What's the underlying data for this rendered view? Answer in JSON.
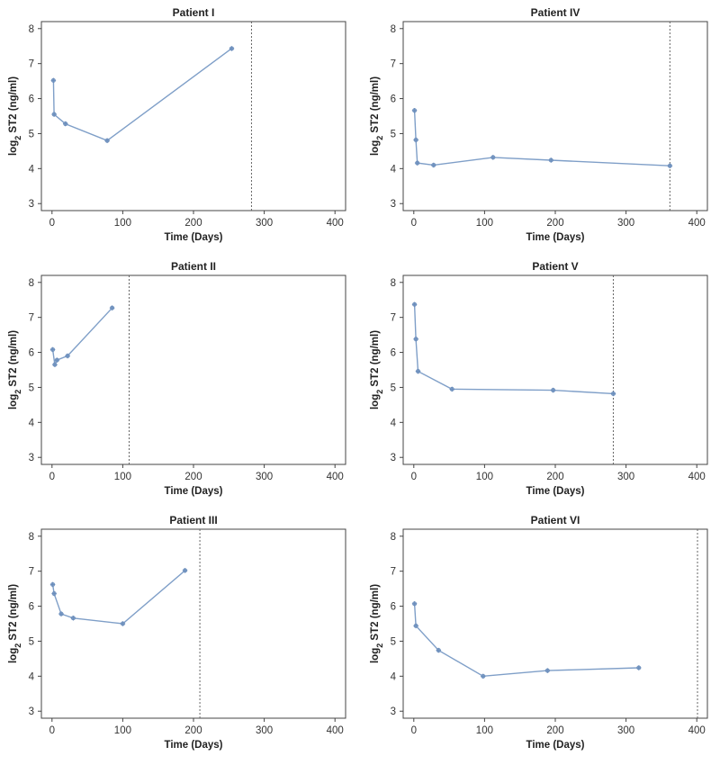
{
  "chart_data": [
    {
      "type": "line",
      "title": "Patient I",
      "xlabel": "Time (Days)",
      "ylabel": {
        "prefix": "log",
        "subscript": "2",
        "suffix": " ST2 (ng/ml)"
      },
      "xlim": [
        -15,
        415
      ],
      "ylim": [
        2.8,
        8.2
      ],
      "xticks": [
        0,
        100,
        200,
        300,
        400
      ],
      "yticks": [
        3,
        4,
        5,
        6,
        7,
        8
      ],
      "x": [
        2,
        3,
        19,
        78,
        254
      ],
      "y": [
        6.52,
        5.55,
        5.28,
        4.8,
        7.43
      ],
      "vline": 282
    },
    {
      "type": "line",
      "title": "Patient IV",
      "xlabel": "Time (Days)",
      "ylabel": {
        "prefix": "log",
        "subscript": "2",
        "suffix": " ST2 (ng/ml)"
      },
      "xlim": [
        -15,
        415
      ],
      "ylim": [
        2.8,
        8.2
      ],
      "xticks": [
        0,
        100,
        200,
        300,
        400
      ],
      "yticks": [
        3,
        4,
        5,
        6,
        7,
        8
      ],
      "x": [
        1,
        3,
        5,
        28,
        112,
        194,
        362
      ],
      "y": [
        5.66,
        4.82,
        4.16,
        4.1,
        4.32,
        4.24,
        4.08
      ],
      "vline": 362
    },
    {
      "type": "line",
      "title": "Patient II",
      "xlabel": "Time (Days)",
      "ylabel": {
        "prefix": "log",
        "subscript": "2",
        "suffix": " ST2 (ng/ml)"
      },
      "xlim": [
        -15,
        415
      ],
      "ylim": [
        2.8,
        8.2
      ],
      "xticks": [
        0,
        100,
        200,
        300,
        400
      ],
      "yticks": [
        3,
        4,
        5,
        6,
        7,
        8
      ],
      "x": [
        1,
        4,
        7,
        22,
        85
      ],
      "y": [
        6.08,
        5.65,
        5.78,
        5.9,
        7.27
      ],
      "vline": 109
    },
    {
      "type": "line",
      "title": "Patient V",
      "xlabel": "Time (Days)",
      "ylabel": {
        "prefix": "log",
        "subscript": "2",
        "suffix": " ST2 (ng/ml)"
      },
      "xlim": [
        -15,
        415
      ],
      "ylim": [
        2.8,
        8.2
      ],
      "xticks": [
        0,
        100,
        200,
        300,
        400
      ],
      "yticks": [
        3,
        4,
        5,
        6,
        7,
        8
      ],
      "x": [
        1,
        3,
        6,
        54,
        197,
        282
      ],
      "y": [
        7.37,
        6.38,
        5.46,
        4.95,
        4.92,
        4.82
      ],
      "vline": 282
    },
    {
      "type": "line",
      "title": "Patient III",
      "xlabel": "Time (Days)",
      "ylabel": {
        "prefix": "log",
        "subscript": "2",
        "suffix": " ST2 (ng/ml)"
      },
      "xlim": [
        -15,
        415
      ],
      "ylim": [
        2.8,
        8.2
      ],
      "xticks": [
        0,
        100,
        200,
        300,
        400
      ],
      "yticks": [
        3,
        4,
        5,
        6,
        7,
        8
      ],
      "x": [
        1,
        3,
        13,
        30,
        100,
        188
      ],
      "y": [
        6.62,
        6.36,
        5.78,
        5.66,
        5.5,
        7.02
      ],
      "vline": 209
    },
    {
      "type": "line",
      "title": "Patient VI",
      "xlabel": "Time (Days)",
      "ylabel": {
        "prefix": "log",
        "subscript": "2",
        "suffix": " ST2 (ng/ml)"
      },
      "xlim": [
        -15,
        415
      ],
      "ylim": [
        2.8,
        8.2
      ],
      "xticks": [
        0,
        100,
        200,
        300,
        400
      ],
      "yticks": [
        3,
        4,
        5,
        6,
        7,
        8
      ],
      "x": [
        1,
        3,
        35,
        98,
        189,
        318
      ],
      "y": [
        6.07,
        5.44,
        4.74,
        4.0,
        4.16,
        4.24
      ],
      "vline": 401
    }
  ]
}
